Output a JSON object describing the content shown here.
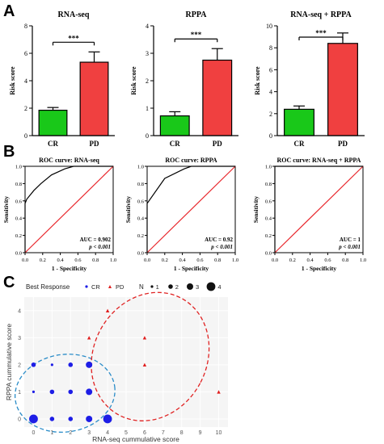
{
  "panel_labels": [
    "A",
    "B",
    "C"
  ],
  "colors": {
    "cr": "#19c819",
    "pd": "#f04040",
    "axis": "#000000",
    "roc_curve": "#000000",
    "diagonal": "#e8262b",
    "scatter_cr": "#1e1ee6",
    "scatter_pd": "#e01e1e",
    "ellipse_cr": "#2a8cc8",
    "ellipse_pd": "#e02222"
  },
  "chart_data": [
    {
      "type": "bar",
      "title": "RNA-seq",
      "ylabel": "Risk score",
      "categories": [
        "CR",
        "PD"
      ],
      "values": [
        1.85,
        5.35
      ],
      "errors": [
        0.2,
        0.75
      ],
      "ylim": [
        0,
        8
      ],
      "yticks": [
        0,
        2,
        4,
        6,
        8
      ],
      "significance": "***"
    },
    {
      "type": "bar",
      "title": "RPPA",
      "ylabel": "Risk score",
      "categories": [
        "CR",
        "PD"
      ],
      "values": [
        0.72,
        2.75
      ],
      "errors": [
        0.15,
        0.42
      ],
      "ylim": [
        0,
        4
      ],
      "yticks": [
        0,
        1,
        2,
        3,
        4
      ],
      "significance": "***"
    },
    {
      "type": "bar",
      "title": "RNA-seq + RPPA",
      "ylabel": "Risk score",
      "categories": [
        "CR",
        "PD"
      ],
      "values": [
        2.4,
        8.4
      ],
      "errors": [
        0.3,
        0.95
      ],
      "ylim": [
        0,
        10
      ],
      "yticks": [
        0,
        2,
        4,
        6,
        8,
        10
      ],
      "significance": "***"
    },
    {
      "type": "line",
      "title": "ROC curve: RNA-seq",
      "xlabel": "1 - Specificity",
      "ylabel": "Sensitivity",
      "xlim": [
        0,
        1
      ],
      "ylim": [
        0,
        1
      ],
      "ticks": [
        "0.0",
        "0.2",
        "0.4",
        "0.6",
        "0.8",
        "1.0"
      ],
      "curve": [
        [
          0,
          0
        ],
        [
          0,
          0.57
        ],
        [
          0.02,
          0.62
        ],
        [
          0.1,
          0.72
        ],
        [
          0.18,
          0.8
        ],
        [
          0.3,
          0.9
        ],
        [
          0.45,
          0.97
        ],
        [
          0.55,
          1
        ],
        [
          1,
          1
        ]
      ],
      "auc_text": "AUC = 0.902",
      "p_text": "p < 0.001"
    },
    {
      "type": "line",
      "title": "ROC curve: RPPA",
      "xlabel": "1 - Specificity",
      "ylabel": "Sensitivity",
      "xlim": [
        0,
        1
      ],
      "ylim": [
        0,
        1
      ],
      "ticks": [
        "0.0",
        "0.2",
        "0.4",
        "0.6",
        "0.8",
        "1.0"
      ],
      "curve": [
        [
          0,
          0
        ],
        [
          0,
          0.57
        ],
        [
          0.2,
          0.86
        ],
        [
          0.42,
          0.97
        ],
        [
          0.5,
          1
        ],
        [
          1,
          1
        ]
      ],
      "auc_text": "AUC = 0.92",
      "p_text": "p < 0.001"
    },
    {
      "type": "line",
      "title": "ROC curve: RNA-seq + RPPA",
      "xlabel": "1 - Specificity",
      "ylabel": "Sensitivity",
      "xlim": [
        0,
        1
      ],
      "ylim": [
        0,
        1
      ],
      "ticks": [
        "0.0",
        "0.2",
        "0.4",
        "0.6",
        "0.8",
        "1.0"
      ],
      "curve": [
        [
          0,
          0
        ],
        [
          0,
          1
        ],
        [
          1,
          1
        ]
      ],
      "auc_text": "AUC = 1",
      "p_text": "p < 0.001"
    },
    {
      "type": "scatter",
      "xlabel": "RNA-seq cummulative score",
      "ylabel": "RPPA cummulative score",
      "xlim": [
        -0.5,
        10.5
      ],
      "ylim": [
        -0.3,
        4.5
      ],
      "xticks": [
        0,
        1,
        2,
        3,
        4,
        5,
        6,
        7,
        8,
        9,
        10
      ],
      "yticks": [
        0,
        1,
        2,
        3,
        4
      ],
      "legend": {
        "title": "Best Response",
        "items": [
          "CR",
          "PD"
        ],
        "size_title": "N",
        "sizes": [
          "1",
          "2",
          "3",
          "4"
        ]
      },
      "points_cr": [
        {
          "x": 0,
          "y": 0,
          "n": 4
        },
        {
          "x": 1,
          "y": 0,
          "n": 2
        },
        {
          "x": 2,
          "y": 0,
          "n": 2
        },
        {
          "x": 3,
          "y": 0,
          "n": 3
        },
        {
          "x": 4,
          "y": 0,
          "n": 4
        },
        {
          "x": 0,
          "y": 1,
          "n": 1
        },
        {
          "x": 1,
          "y": 1,
          "n": 2
        },
        {
          "x": 2,
          "y": 1,
          "n": 2
        },
        {
          "x": 3,
          "y": 1,
          "n": 3
        },
        {
          "x": 0,
          "y": 2,
          "n": 2
        },
        {
          "x": 1,
          "y": 2,
          "n": 1
        },
        {
          "x": 2,
          "y": 2,
          "n": 2
        },
        {
          "x": 3,
          "y": 2,
          "n": 3
        }
      ],
      "points_pd": [
        {
          "x": 3,
          "y": 3,
          "n": 1
        },
        {
          "x": 4,
          "y": 4,
          "n": 1
        },
        {
          "x": 6,
          "y": 3,
          "n": 1
        },
        {
          "x": 6,
          "y": 2,
          "n": 1
        },
        {
          "x": 10,
          "y": 1,
          "n": 1
        }
      ]
    }
  ]
}
